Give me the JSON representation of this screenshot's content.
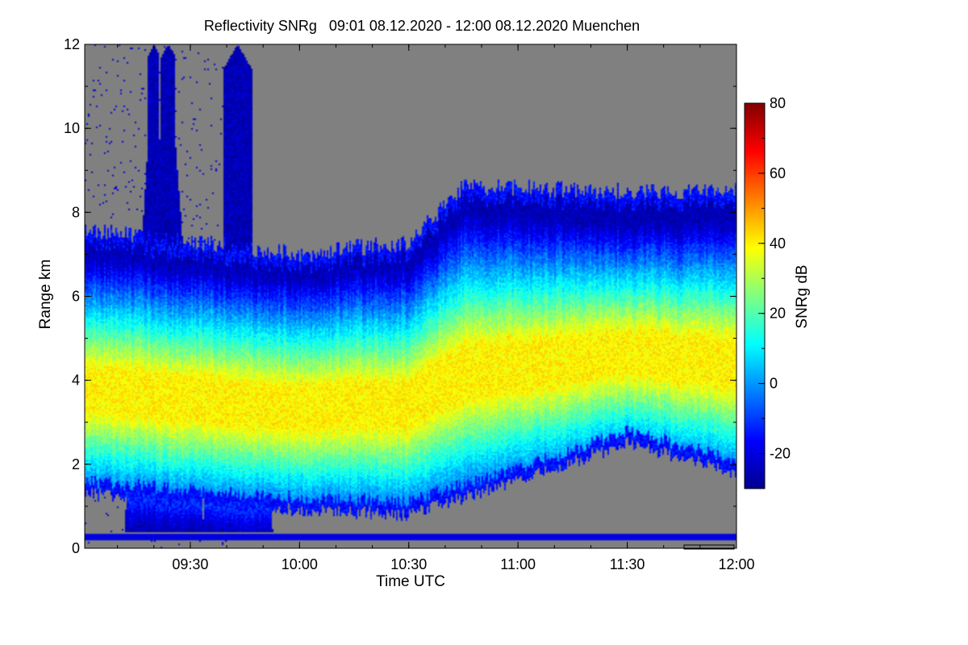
{
  "chart_data": {
    "type": "heatmap",
    "title": "Reflectivity SNRg   09:01 08.12.2020 - 12:00 08.12.2020 Muenchen",
    "xlabel": "Time UTC",
    "ylabel": "Range km",
    "colorbar_label": "SNRg dB",
    "xlim": [
      "09:01",
      "12:00"
    ],
    "ylim": [
      0,
      12
    ],
    "x_ticks": [
      "09:30",
      "10:00",
      "10:30",
      "11:00",
      "11:30",
      "12:00"
    ],
    "y_ticks": [
      "0",
      "2",
      "4",
      "6",
      "8",
      "10",
      "12"
    ],
    "colorbar_range": [
      -30,
      80
    ],
    "colorbar_ticks": [
      "80",
      "60",
      "40",
      "20",
      "0",
      "-20"
    ],
    "colormap": "jet",
    "no_data_color": "#808080",
    "features": {
      "precipitation_streaks_time": [
        "09:20",
        "09:24",
        "09:43"
      ],
      "cloud_top_km": {
        "09:01": 7.6,
        "10:00": 7.0,
        "10:30": 7.3,
        "10:45": 8.6,
        "11:00": 8.6,
        "11:30": 8.5,
        "12:00": 8.5
      },
      "cloud_base_km": {
        "09:01": 1.3,
        "10:00": 0.9,
        "10:30": 0.8,
        "11:00": 1.6,
        "11:30": 2.5,
        "12:00": 1.8
      },
      "core_snr_db": 40,
      "near_surface_band_km": 0.25
    }
  }
}
